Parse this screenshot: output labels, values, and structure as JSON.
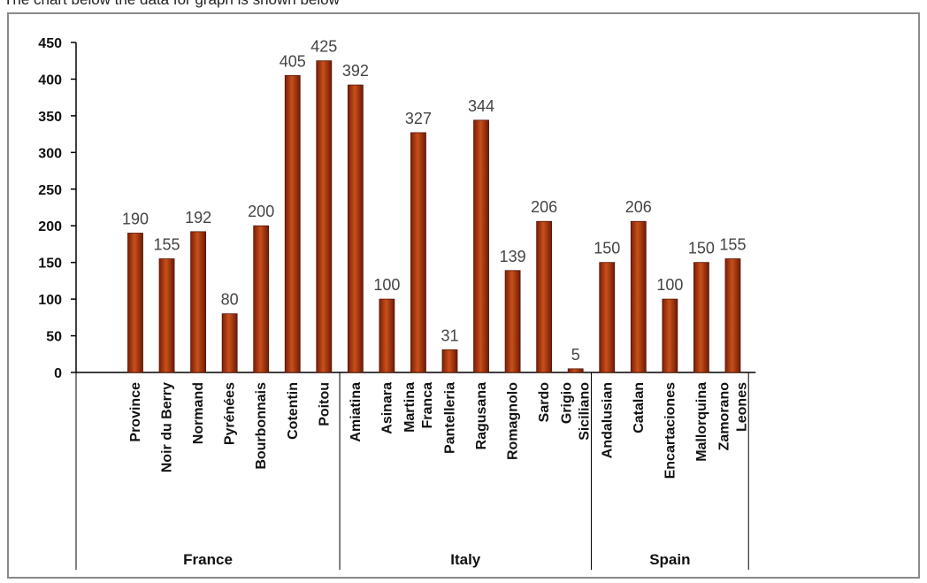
{
  "caption": "The chart below the data for graph is shown below",
  "chart_data": {
    "type": "bar",
    "ylim": [
      0,
      450
    ],
    "y_ticks": [
      0,
      50,
      100,
      150,
      200,
      250,
      300,
      350,
      400,
      450
    ],
    "grid": false,
    "legend": "none",
    "bar_color": "#a8360c",
    "categories": [
      {
        "label": [
          "Province"
        ],
        "value": 190,
        "group": "France"
      },
      {
        "label": [
          "Noir du Berry"
        ],
        "value": 155,
        "group": "France"
      },
      {
        "label": [
          "Normand"
        ],
        "value": 192,
        "group": "France"
      },
      {
        "label": [
          "Pyrénées"
        ],
        "value": 80,
        "group": "France"
      },
      {
        "label": [
          "Bourbonnais"
        ],
        "value": 200,
        "group": "France"
      },
      {
        "label": [
          "Cotentin"
        ],
        "value": 405,
        "group": "France"
      },
      {
        "label": [
          "Poitou"
        ],
        "value": 425,
        "group": "France"
      },
      {
        "label": [
          "Amiatina"
        ],
        "value": 392,
        "group": "Italy"
      },
      {
        "label": [
          "Asinara"
        ],
        "value": 100,
        "group": "Italy"
      },
      {
        "label": [
          "Martina",
          "Franca"
        ],
        "value": 327,
        "group": "Italy"
      },
      {
        "label": [
          "Pantelleria"
        ],
        "value": 31,
        "group": "Italy"
      },
      {
        "label": [
          "Ragusana"
        ],
        "value": 344,
        "group": "Italy"
      },
      {
        "label": [
          "Romagnolo"
        ],
        "value": 139,
        "group": "Italy"
      },
      {
        "label": [
          "Sardo"
        ],
        "value": 206,
        "group": "Italy"
      },
      {
        "label": [
          "Grigio",
          "Siciliano"
        ],
        "value": 5,
        "group": "Italy"
      },
      {
        "label": [
          "Andalusian"
        ],
        "value": 150,
        "group": "Spain"
      },
      {
        "label": [
          "Catalan"
        ],
        "value": 206,
        "group": "Spain"
      },
      {
        "label": [
          "Encartaciones"
        ],
        "value": 100,
        "group": "Spain"
      },
      {
        "label": [
          "Mallorquina"
        ],
        "value": 150,
        "group": "Spain"
      },
      {
        "label": [
          "Zamorano",
          "Leones"
        ],
        "value": 155,
        "group": "Spain"
      }
    ],
    "groups": [
      "France",
      "Italy",
      "Spain"
    ]
  }
}
